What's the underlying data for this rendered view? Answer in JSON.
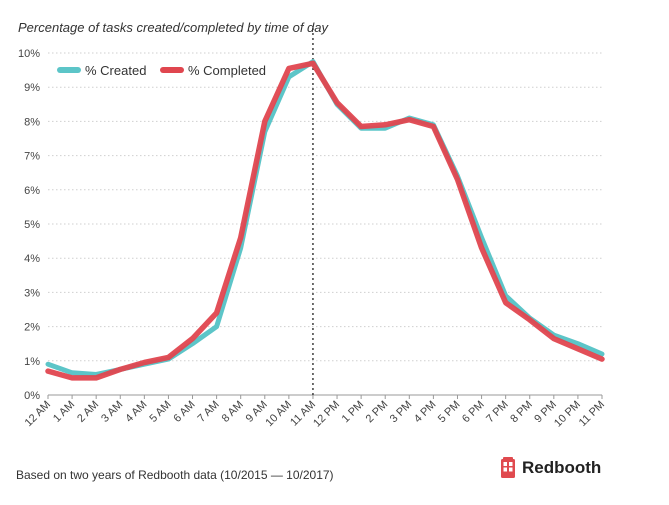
{
  "title": "Percentage of tasks created/completed by time of day",
  "footnote": "Based on two years of Redbooth data (10/2015 — 10/2017)",
  "brand": {
    "name": "Redbooth",
    "icon": "phone-booth-icon",
    "color": "#e04a4f"
  },
  "chart_data": {
    "type": "line",
    "title": "Percentage of tasks created/completed by time of day",
    "xlabel": "",
    "ylabel": "",
    "categories": [
      "12 AM",
      "1 AM",
      "2 AM",
      "3 AM",
      "4 AM",
      "5 AM",
      "6 AM",
      "7 AM",
      "8 AM",
      "9 AM",
      "10 AM",
      "11 AM",
      "12 PM",
      "1 PM",
      "2 PM",
      "3 PM",
      "4 PM",
      "5 PM",
      "6 PM",
      "7 PM",
      "8 PM",
      "9 PM",
      "10 PM",
      "11 PM"
    ],
    "y_ticks": [
      "0%",
      "1%",
      "2%",
      "3%",
      "4%",
      "5%",
      "6%",
      "7%",
      "8%",
      "9%",
      "10%"
    ],
    "ylim": [
      0,
      10
    ],
    "grid": "horizontal dotted",
    "legend": "top-left",
    "marker_line_at": "11 AM",
    "series": [
      {
        "name": "% Created",
        "color": "#5cc5c8",
        "values": [
          0.9,
          0.65,
          0.6,
          0.75,
          0.9,
          1.05,
          1.5,
          2.0,
          4.3,
          7.7,
          9.3,
          9.75,
          8.5,
          7.8,
          7.8,
          8.1,
          7.9,
          6.4,
          4.6,
          2.9,
          2.25,
          1.75,
          1.5,
          1.2
        ]
      },
      {
        "name": "% Completed",
        "color": "#e0464f",
        "values": [
          0.7,
          0.5,
          0.5,
          0.75,
          0.95,
          1.1,
          1.65,
          2.4,
          4.6,
          8.0,
          9.55,
          9.7,
          8.55,
          7.85,
          7.9,
          8.05,
          7.85,
          6.3,
          4.3,
          2.7,
          2.2,
          1.65,
          1.35,
          1.05
        ]
      }
    ]
  }
}
